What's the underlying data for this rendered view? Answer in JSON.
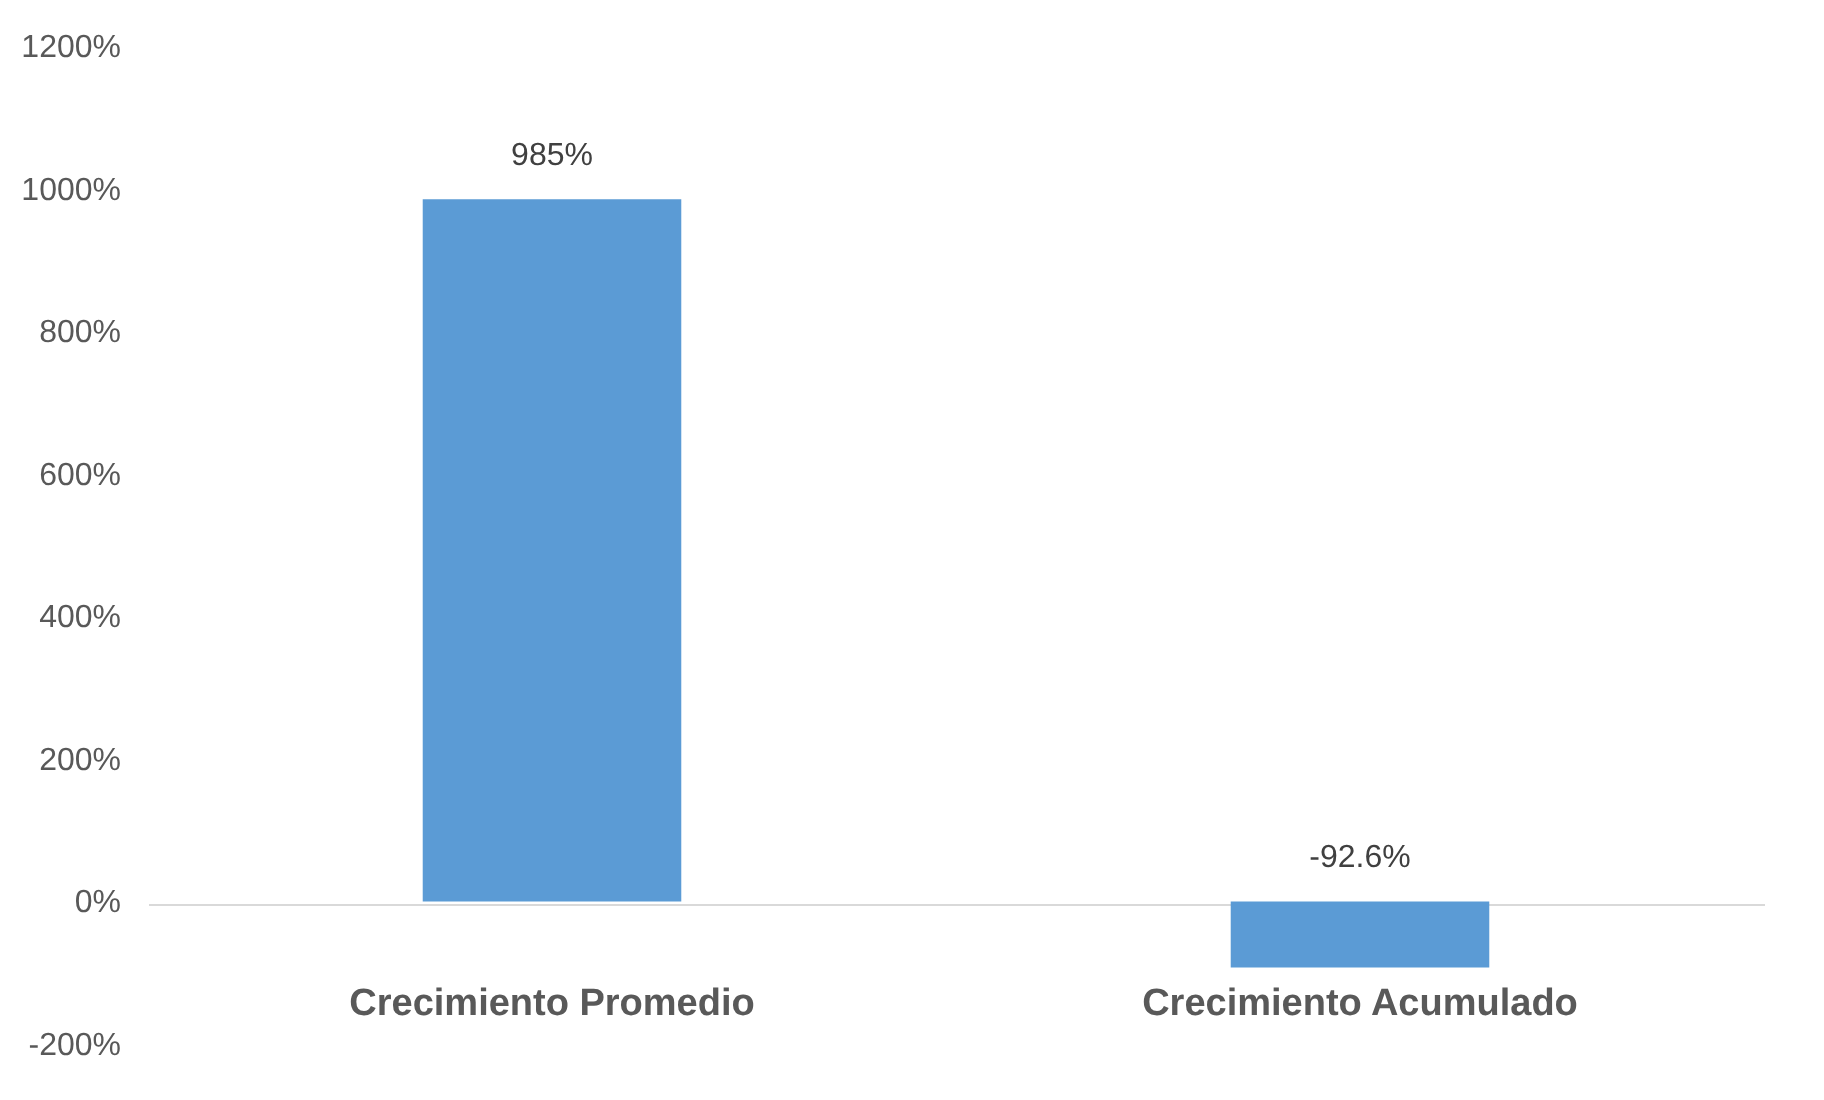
{
  "chart_data": {
    "type": "bar",
    "categories": [
      "Crecimiento Promedio",
      "Crecimiento Acumulado"
    ],
    "values": [
      985,
      -92.6
    ],
    "color": "#5b9bd5",
    "value_labels": [
      "985%",
      "-92.6%"
    ],
    "ylim": [
      -200,
      1200
    ],
    "yticks": [
      {
        "value": -200,
        "label": "-200%"
      },
      {
        "value": 0,
        "label": "0%"
      },
      {
        "value": 200,
        "label": "200%"
      },
      {
        "value": 400,
        "label": "400%"
      },
      {
        "value": 600,
        "label": "600%"
      },
      {
        "value": 800,
        "label": "800%"
      },
      {
        "value": 1000,
        "label": "1000%"
      },
      {
        "value": 1200,
        "label": "1200%"
      }
    ]
  }
}
